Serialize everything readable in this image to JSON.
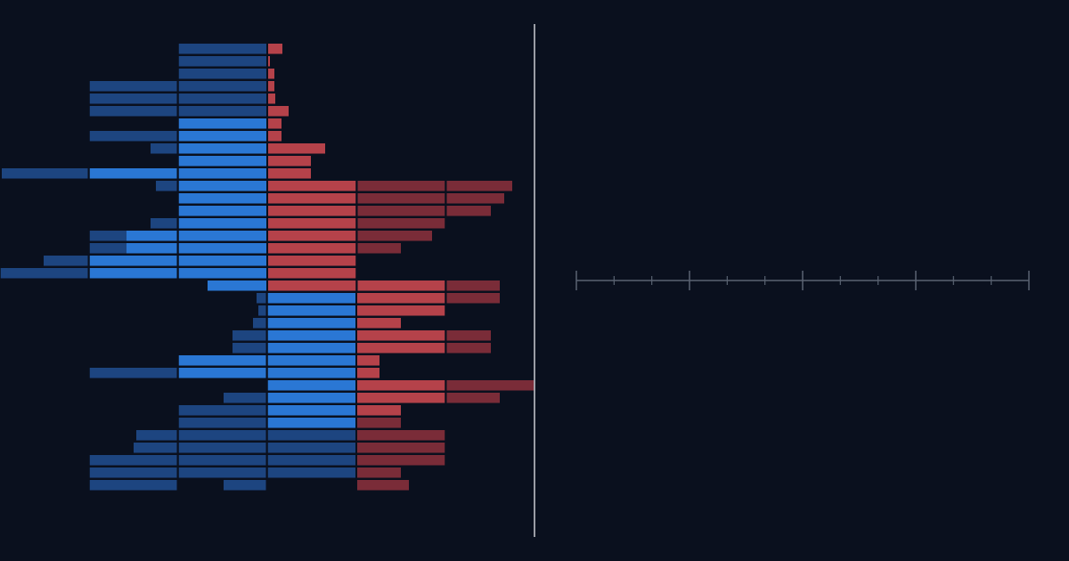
{
  "colors": {
    "background": "#0a101e",
    "blue_bright": "#2a77d4",
    "blue_dark": "#1d4580",
    "red_bright": "#b5424a",
    "red_dark": "#7a2c38",
    "divider": "#c9ccd2",
    "axis": "#5a6372"
  },
  "chart_data": {
    "type": "bar",
    "orientation": "horizontal-diverging",
    "segment_unit": 1,
    "axis": {
      "major_ticks": 5,
      "minor_ticks_per_interval": 2
    },
    "rows": [
      {
        "split": 3,
        "blue": [
          1,
          0,
          0
        ],
        "blue_bright": 0,
        "red": [
          0.17,
          0,
          0
        ],
        "red_bright": 0.17
      },
      {
        "split": 3,
        "blue": [
          1,
          0,
          0
        ],
        "blue_bright": 0,
        "red": [
          0.03,
          0,
          0
        ],
        "red_bright": 0.03
      },
      {
        "split": 3,
        "blue": [
          1,
          0,
          0
        ],
        "blue_bright": 0,
        "red": [
          0.08,
          0,
          0
        ],
        "red_bright": 0.08
      },
      {
        "split": 3,
        "blue": [
          1,
          1,
          0
        ],
        "blue_bright": 0,
        "red": [
          0.08,
          0,
          0
        ],
        "red_bright": 0.08
      },
      {
        "split": 3,
        "blue": [
          1,
          1,
          0
        ],
        "blue_bright": 0,
        "red": [
          0.09,
          0,
          0
        ],
        "red_bright": 0.09
      },
      {
        "split": 3,
        "blue": [
          1,
          1,
          0
        ],
        "blue_bright": 0,
        "red": [
          0.24,
          0,
          0
        ],
        "red_bright": 0.24
      },
      {
        "split": 3,
        "blue": [
          1,
          0,
          0
        ],
        "blue_bright": 1,
        "red": [
          0.16,
          0,
          0
        ],
        "red_bright": 0.16
      },
      {
        "split": 3,
        "blue": [
          1,
          1,
          0
        ],
        "blue_bright": 1,
        "red": [
          0.16,
          0,
          0
        ],
        "red_bright": 0.16
      },
      {
        "split": 3,
        "blue": [
          1,
          0.31,
          0
        ],
        "blue_bright": 1,
        "red": [
          0.65,
          0,
          0
        ],
        "red_bright": 0.65
      },
      {
        "split": 3,
        "blue": [
          1,
          0,
          0
        ],
        "blue_bright": 1,
        "red": [
          0.49,
          0,
          0
        ],
        "red_bright": 0.49
      },
      {
        "split": 3,
        "blue": [
          1,
          1,
          0.98
        ],
        "blue_bright": 2,
        "red": [
          0.49,
          0,
          0
        ],
        "red_bright": 0.49
      },
      {
        "split": 3,
        "blue": [
          1,
          0.25,
          0
        ],
        "blue_bright": 1,
        "red": [
          1,
          1,
          0.75
        ],
        "red_bright": 1
      },
      {
        "split": 3,
        "blue": [
          1,
          0,
          0
        ],
        "blue_bright": 1,
        "red": [
          1,
          1,
          0.66
        ],
        "red_bright": 1
      },
      {
        "split": 3,
        "blue": [
          1,
          0,
          0
        ],
        "blue_bright": 1,
        "red": [
          1,
          1,
          0.51
        ],
        "red_bright": 1
      },
      {
        "split": 3,
        "blue": [
          1,
          0.31,
          0
        ],
        "blue_bright": 1,
        "red": [
          1,
          1,
          0
        ],
        "red_bright": 1
      },
      {
        "split": 3,
        "blue": [
          1,
          1,
          0
        ],
        "blue_bright": 1.58,
        "red": [
          1,
          0.85,
          0
        ],
        "red_bright": 1
      },
      {
        "split": 3,
        "blue": [
          1,
          1,
          0
        ],
        "blue_bright": 1.58,
        "red": [
          1,
          0.5,
          0
        ],
        "red_bright": 1
      },
      {
        "split": 3,
        "blue": [
          1,
          1,
          0.51
        ],
        "blue_bright": 2,
        "red": [
          1,
          0,
          0
        ],
        "red_bright": 1
      },
      {
        "split": 3,
        "blue": [
          1,
          1,
          1
        ],
        "blue_bright": 2,
        "red": [
          1,
          0,
          0
        ],
        "red_bright": 1
      },
      {
        "split": 3,
        "blue": [
          0.67,
          0,
          0
        ],
        "blue_bright": 0.67,
        "red": [
          1,
          1,
          0.61
        ],
        "red_bright": 2
      },
      {
        "split": 4,
        "blue": [
          1,
          0.12,
          0
        ],
        "blue_bright": 1,
        "red": [
          1,
          0.61
        ],
        "red_bright": 1
      },
      {
        "split": 4,
        "blue": [
          1,
          0.1,
          0
        ],
        "blue_bright": 1,
        "red": [
          1,
          0
        ],
        "red_bright": 1
      },
      {
        "split": 4,
        "blue": [
          1,
          0.16,
          0
        ],
        "blue_bright": 1,
        "red": [
          0.5,
          0
        ],
        "red_bright": 0.5
      },
      {
        "split": 4,
        "blue": [
          1,
          0.39,
          0
        ],
        "blue_bright": 1,
        "red": [
          1,
          0.51
        ],
        "red_bright": 1
      },
      {
        "split": 4,
        "blue": [
          1,
          0.39,
          0
        ],
        "blue_bright": 1,
        "red": [
          1,
          0.51
        ],
        "red_bright": 1
      },
      {
        "split": 4,
        "blue": [
          1,
          1,
          0
        ],
        "blue_bright": 2,
        "red": [
          0.26,
          0
        ],
        "red_bright": 0.26
      },
      {
        "split": 4,
        "blue": [
          1,
          1,
          1
        ],
        "blue_bright": 2,
        "red": [
          0.26,
          0
        ],
        "red_bright": 0.26
      },
      {
        "split": 4,
        "blue": [
          1,
          0,
          0
        ],
        "blue_bright": 1,
        "red": [
          1,
          1
        ],
        "red_bright": 1
      },
      {
        "split": 4,
        "blue": [
          1,
          0.49,
          0
        ],
        "blue_bright": 1,
        "red": [
          1,
          0.61
        ],
        "red_bright": 1
      },
      {
        "split": 4,
        "blue": [
          1,
          1,
          0
        ],
        "blue_bright": 1,
        "red": [
          0.5,
          0
        ],
        "red_bright": 0.5
      },
      {
        "split": 4,
        "blue": [
          1,
          1,
          0
        ],
        "blue_bright": 1,
        "red": [
          0.5,
          0
        ],
        "red_bright": 0
      },
      {
        "split": 4,
        "blue": [
          1,
          1,
          0.47
        ],
        "blue_bright": 0,
        "red": [
          1,
          0
        ],
        "red_bright": 0
      },
      {
        "split": 4,
        "blue": [
          1,
          1,
          0.5
        ],
        "blue_bright": 0,
        "red": [
          1,
          0
        ],
        "red_bright": 0
      },
      {
        "split": 4,
        "blue": [
          1,
          1,
          1
        ],
        "blue_bright": 0,
        "red": [
          1,
          0
        ],
        "red_bright": 0
      },
      {
        "split": 4,
        "blue": [
          1,
          1,
          1
        ],
        "blue_bright": 0,
        "red": [
          0.5,
          0
        ],
        "red_bright": 0
      },
      {
        "split": 4,
        "blue": [
          0,
          0.49,
          1
        ],
        "blue_bright": 0,
        "red": [
          0.59,
          0
        ],
        "red_bright": 0
      }
    ]
  }
}
